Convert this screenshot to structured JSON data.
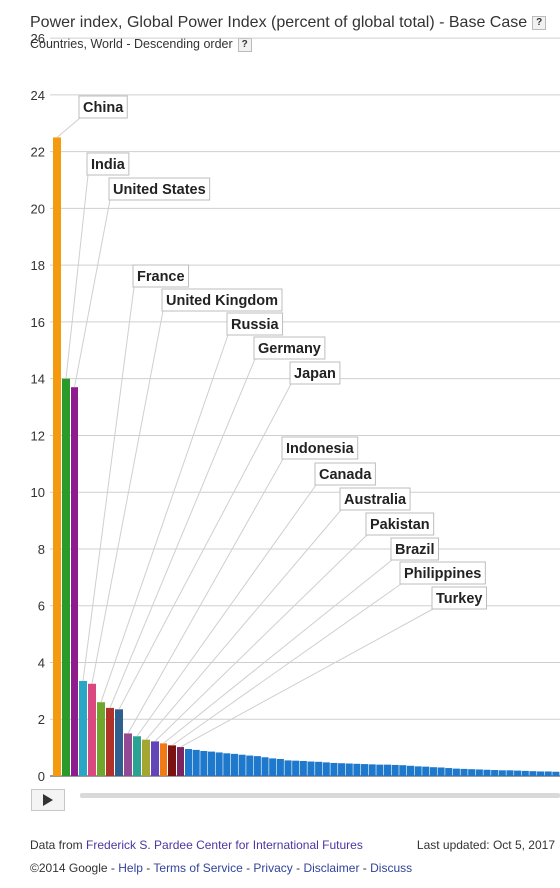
{
  "header": {
    "title": "Power index, Global Power Index (percent of global total) - Base Case",
    "subtitle": "Countries, World - Descending order",
    "help_label": "?"
  },
  "chart_data": {
    "type": "bar",
    "title": "Power index, Global Power Index (percent of global total) - Base Case",
    "subtitle": "Countries, World - Descending order",
    "ylim": [
      0,
      26
    ],
    "y_ticks": [
      0,
      2,
      4,
      6,
      8,
      10,
      12,
      14,
      16,
      18,
      20,
      22,
      24,
      26
    ],
    "grid": true,
    "order": "descending",
    "labeled_bars": [
      {
        "name": "China",
        "value": 22.5,
        "color": "#f59a0e"
      },
      {
        "name": "India",
        "value": 14.0,
        "color": "#2a9a2a"
      },
      {
        "name": "United States",
        "value": 13.7,
        "color": "#8e1c8e"
      },
      {
        "name": "France",
        "value": 3.35,
        "color": "#2aa7c5"
      },
      {
        "name": "United Kingdom",
        "value": 3.25,
        "color": "#d9487f"
      },
      {
        "name": "Russia",
        "value": 2.6,
        "color": "#6ea72b"
      },
      {
        "name": "Germany",
        "value": 2.4,
        "color": "#b0302a"
      },
      {
        "name": "Japan",
        "value": 2.35,
        "color": "#2e5f8f"
      },
      {
        "name": "Indonesia",
        "value": 1.5,
        "color": "#944994"
      },
      {
        "name": "Canada",
        "value": 1.4,
        "color": "#2aa394"
      },
      {
        "name": "Australia",
        "value": 1.28,
        "color": "#a5a531"
      },
      {
        "name": "Pakistan",
        "value": 1.22,
        "color": "#6445b8"
      },
      {
        "name": "Brazil",
        "value": 1.15,
        "color": "#ef7a16"
      },
      {
        "name": "Philippines",
        "value": 1.08,
        "color": "#7a1212"
      },
      {
        "name": "Turkey",
        "value": 1.02,
        "color": "#7b2460"
      }
    ],
    "other_bars": {
      "color": "#1e78cc",
      "values": [
        0.95,
        0.92,
        0.88,
        0.86,
        0.83,
        0.8,
        0.78,
        0.75,
        0.72,
        0.7,
        0.66,
        0.62,
        0.6,
        0.55,
        0.54,
        0.53,
        0.51,
        0.5,
        0.48,
        0.46,
        0.45,
        0.44,
        0.43,
        0.42,
        0.41,
        0.4,
        0.4,
        0.39,
        0.38,
        0.36,
        0.34,
        0.33,
        0.31,
        0.3,
        0.28,
        0.26,
        0.25,
        0.24,
        0.23,
        0.22,
        0.21,
        0.2,
        0.2,
        0.19,
        0.18,
        0.17,
        0.16,
        0.16,
        0.15
      ]
    }
  },
  "controls": {
    "play_icon": "play-icon"
  },
  "footer": {
    "data_from_prefix": "Data from",
    "source_link": "Frederick S. Pardee Center for International Futures",
    "last_updated": "Last updated: Oct 5, 2017",
    "copyright": "©2014 Google -",
    "links": [
      "Help",
      "Terms of Service",
      "Privacy",
      "Disclaimer",
      "Discuss"
    ],
    "separator": " - "
  }
}
